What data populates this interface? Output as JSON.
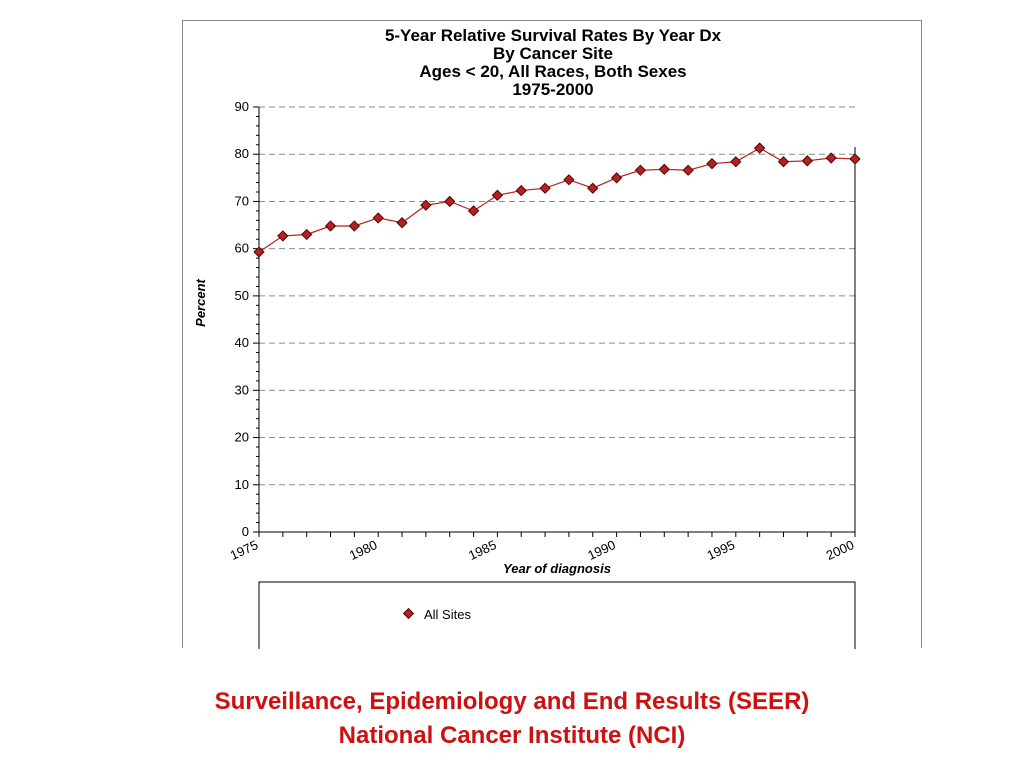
{
  "chart_data": {
    "type": "line",
    "title": [
      "5-Year Relative Survival Rates By Year Dx",
      "By Cancer Site",
      "Ages < 20, All Races, Both Sexes",
      "1975-2000"
    ],
    "xlabel": "Year of diagnosis",
    "ylabel": "Percent",
    "xlim": [
      1975,
      2000
    ],
    "ylim": [
      0,
      90
    ],
    "xticks": [
      "1975",
      "1980",
      "1985",
      "1990",
      "1995",
      "2000"
    ],
    "yticks": [
      "0",
      "10",
      "20",
      "30",
      "40",
      "50",
      "60",
      "70",
      "80",
      "90"
    ],
    "grid": "horizontal dashed",
    "legend_position": "bottom",
    "series": [
      {
        "name": "All Sites",
        "color": "#b22222",
        "x": [
          1975,
          1976,
          1977,
          1978,
          1979,
          1980,
          1981,
          1982,
          1983,
          1984,
          1985,
          1986,
          1987,
          1988,
          1989,
          1990,
          1991,
          1992,
          1993,
          1994,
          1995,
          1996,
          1997,
          1998,
          1999,
          2000
        ],
        "values": [
          59.3,
          62.7,
          63.0,
          64.8,
          64.8,
          66.5,
          65.5,
          69.2,
          70.0,
          68.0,
          71.3,
          72.3,
          72.8,
          74.6,
          72.8,
          75.0,
          76.6,
          76.8,
          76.6,
          78.0,
          78.4,
          81.3,
          78.4,
          78.6,
          79.2,
          79.0
        ]
      }
    ]
  },
  "footer": {
    "line1": "Surveillance, Epidemiology and End Results (SEER)",
    "line2": "National Cancer Institute (NCI)"
  }
}
